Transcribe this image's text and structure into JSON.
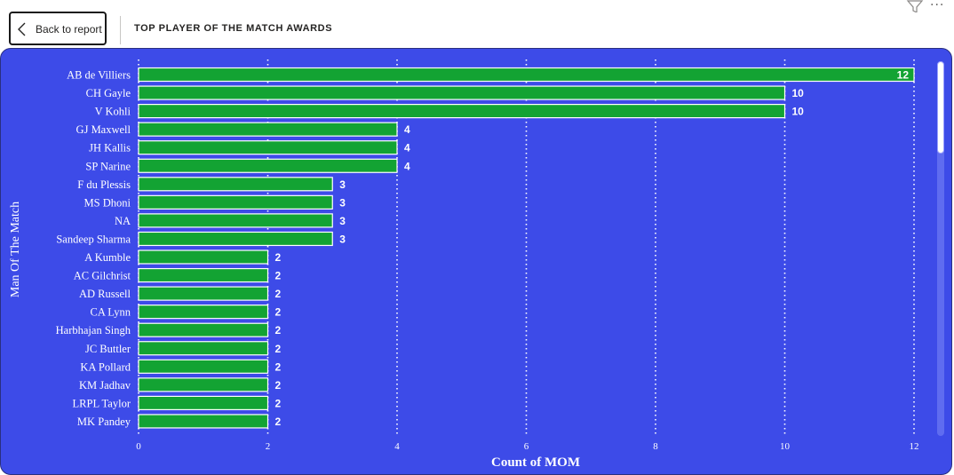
{
  "header": {
    "back_label": "Back to report",
    "title": "TOP PLAYER OF THE MATCH AWARDS"
  },
  "icons": {
    "back": "chevron-left-icon",
    "filter": "filter-icon",
    "more": "more-options-icon"
  },
  "colors": {
    "panel_bg": "#3d4be8",
    "bar_fill": "#13a333",
    "bar_stroke": "#ffffff",
    "text": "#ffffff"
  },
  "chart_data": {
    "type": "bar",
    "orientation": "horizontal",
    "title": "",
    "xlabel": "Count of MOM",
    "ylabel": "Man Of The Match",
    "xlim": [
      0,
      12
    ],
    "xticks": [
      0,
      2,
      4,
      6,
      8,
      10,
      12
    ],
    "grid": true,
    "categories": [
      "AB de Villiers",
      "CH Gayle",
      "V Kohli",
      "GJ Maxwell",
      "JH Kallis",
      "SP Narine",
      "F du Plessis",
      "MS Dhoni",
      "NA",
      "Sandeep Sharma",
      "A Kumble",
      "AC Gilchrist",
      "AD Russell",
      "CA Lynn",
      "Harbhajan Singh",
      "JC Buttler",
      "KA Pollard",
      "KM Jadhav",
      "LRPL Taylor",
      "MK Pandey"
    ],
    "values": [
      12,
      10,
      10,
      4,
      4,
      4,
      3,
      3,
      3,
      3,
      2,
      2,
      2,
      2,
      2,
      2,
      2,
      2,
      2,
      2
    ]
  }
}
